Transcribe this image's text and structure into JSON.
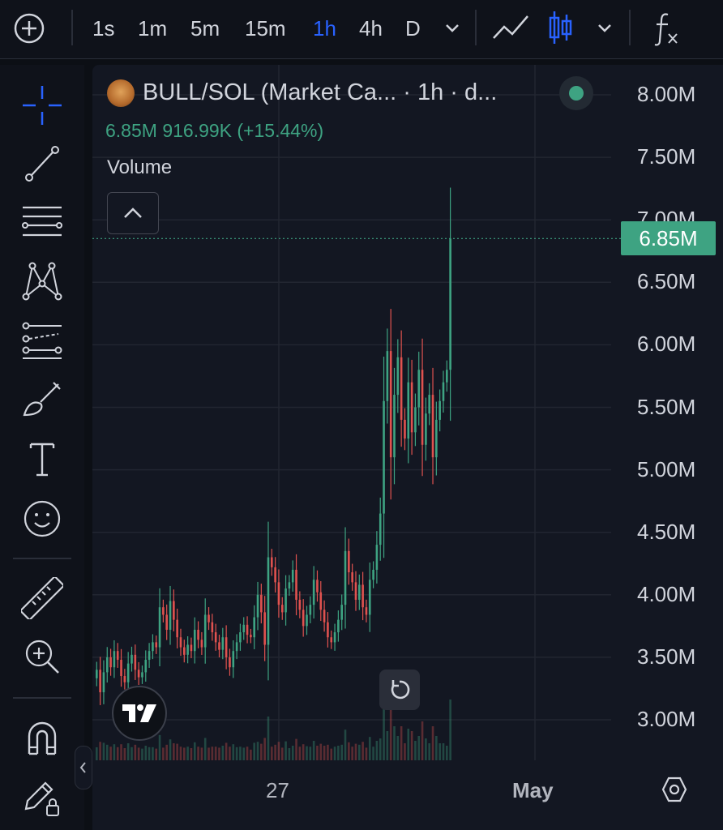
{
  "toolbar": {
    "intervals": [
      "1s",
      "1m",
      "5m",
      "15m",
      "1h",
      "4h",
      "D"
    ],
    "active_interval": "1h"
  },
  "legend": {
    "title": "BULL/SOL (Market Ca... · 1h · d...",
    "values": "6.85M  916.99K  (+15.44%)",
    "volume_label": "Volume"
  },
  "price_axis": {
    "labels": [
      "8.00M",
      "7.50M",
      "7.00M",
      "6.50M",
      "6.00M",
      "5.50M",
      "5.00M",
      "4.50M",
      "4.00M",
      "3.50M",
      "3.00M"
    ],
    "current_price": "6.85M"
  },
  "time_axis": {
    "labels": [
      "27",
      "May"
    ]
  },
  "colors": {
    "up": "#3ea382",
    "down": "#e0524f",
    "accent": "#2962ff"
  },
  "chart_data": {
    "type": "candlestick",
    "symbol": "BULL/SOL",
    "interval": "1h",
    "last": 6.85,
    "change": "916.99K",
    "change_pct": "+15.44%",
    "ylim": [
      2.8,
      8.1
    ],
    "y_unit": "M",
    "close_series": [
      3.4,
      3.22,
      3.38,
      3.5,
      3.42,
      3.55,
      3.48,
      3.35,
      3.3,
      3.45,
      3.52,
      3.4,
      3.34,
      3.38,
      3.48,
      3.55,
      3.62,
      3.58,
      3.9,
      3.84,
      3.72,
      3.95,
      3.8,
      3.66,
      3.58,
      3.52,
      3.6,
      3.55,
      3.72,
      3.64,
      3.58,
      3.84,
      3.78,
      3.7,
      3.62,
      3.56,
      3.66,
      3.5,
      3.42,
      3.55,
      3.62,
      3.7,
      3.76,
      3.68,
      3.66,
      3.82,
      4.0,
      3.86,
      3.6,
      4.3,
      4.22,
      4.1,
      3.92,
      3.86,
      4.05,
      4.1,
      4.2,
      3.96,
      3.88,
      3.75,
      3.84,
      3.92,
      4.12,
      4.02,
      3.88,
      3.78,
      3.66,
      3.62,
      3.7,
      3.8,
      3.92,
      4.35,
      4.18,
      4.1,
      3.96,
      4.08,
      3.9,
      3.84,
      4.12,
      4.2,
      4.4,
      4.65,
      5.55,
      5.95,
      5.1,
      5.6,
      5.9,
      5.4,
      5.25,
      5.7,
      5.3,
      5.5,
      5.8,
      5.2,
      5.45,
      5.6,
      5.1,
      5.4,
      5.55,
      5.7,
      5.8,
      6.85
    ]
  }
}
